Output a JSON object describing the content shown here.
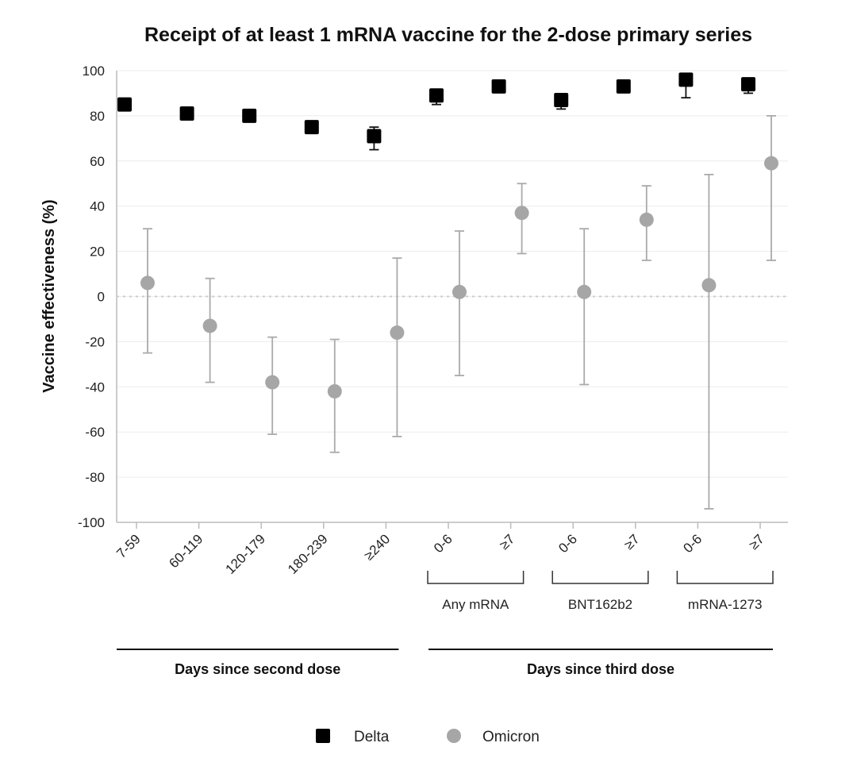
{
  "chart_data": {
    "type": "scatter",
    "title": "Receipt of at least 1 mRNA vaccine for the 2-dose primary series",
    "ylabel": "Vaccine effectiveness (%)",
    "xlabel": "",
    "ylim": [
      -100,
      100
    ],
    "yticks": [
      100,
      80,
      60,
      40,
      20,
      0,
      -20,
      -40,
      -60,
      -80,
      -100
    ],
    "grid": true,
    "categories": [
      "7-59",
      "60-119",
      "120-179",
      "180-239",
      "≥240",
      "0-6",
      "≥7",
      "0-6",
      "≥7",
      "0-6",
      "≥7"
    ],
    "groups": [
      {
        "label": "Any mRNA",
        "from": 5,
        "to": 6
      },
      {
        "label": "BNT162b2",
        "from": 7,
        "to": 8
      },
      {
        "label": "mRNA-1273",
        "from": 9,
        "to": 10
      }
    ],
    "sections": [
      {
        "label": "Days since second dose",
        "from": 0,
        "to": 4
      },
      {
        "label": "Days since third dose",
        "from": 5,
        "to": 10
      }
    ],
    "series": [
      {
        "name": "Delta",
        "marker": "square",
        "color": "#000000",
        "values": [
          85,
          81,
          80,
          75,
          71,
          89,
          93,
          87,
          93,
          96,
          94
        ],
        "lower": [
          null,
          null,
          null,
          null,
          65,
          85,
          null,
          83,
          null,
          88,
          90
        ],
        "upper": [
          null,
          null,
          null,
          null,
          75,
          90,
          null,
          88,
          null,
          97,
          95
        ]
      },
      {
        "name": "Omicron",
        "marker": "circle",
        "color": "#a6a6a6",
        "values": [
          6,
          -13,
          -38,
          -42,
          -16,
          2,
          37,
          2,
          34,
          5,
          59
        ],
        "lower": [
          -25,
          -38,
          -61,
          -69,
          -62,
          -35,
          19,
          -39,
          16,
          -94,
          16
        ],
        "upper": [
          30,
          8,
          -18,
          -19,
          17,
          29,
          50,
          30,
          49,
          54,
          80
        ]
      }
    ],
    "legend": "bottom-center",
    "reference_line": 0
  }
}
